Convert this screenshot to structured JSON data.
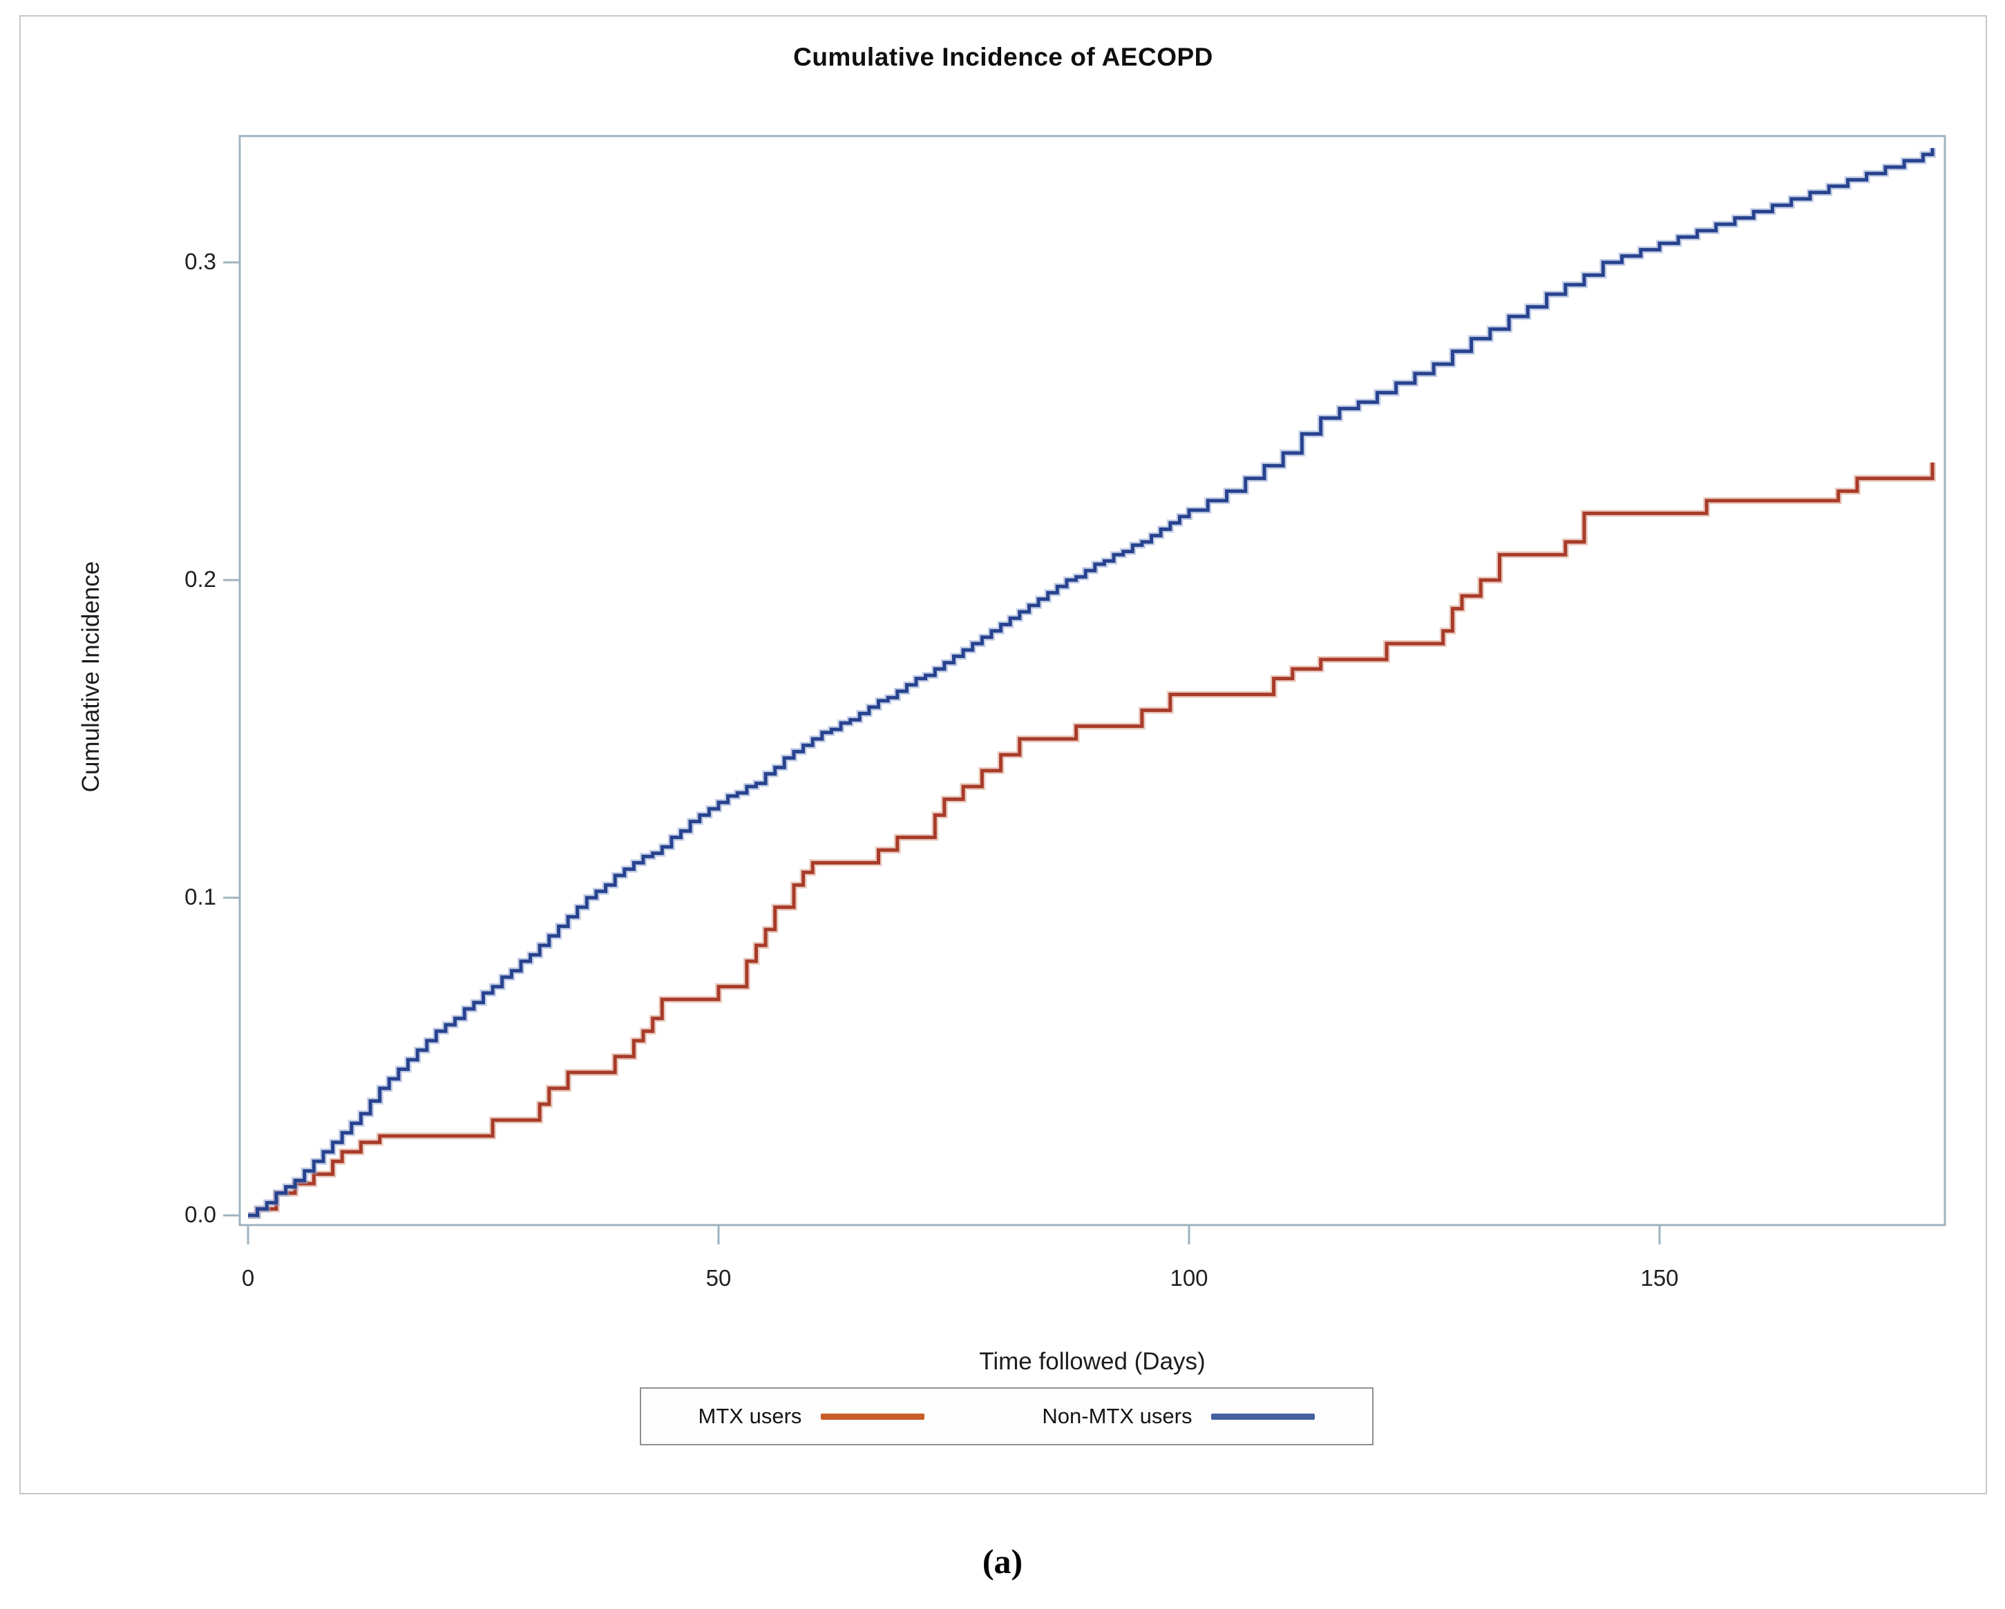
{
  "figure": {
    "title": "Cumulative Incidence of AECOPD",
    "caption": "(a)",
    "x_axis": {
      "label": "Time followed (Days)",
      "tick_labels": [
        "0",
        "50",
        "100",
        "150"
      ],
      "tick_values": [
        0,
        50,
        100,
        150
      ],
      "range": [
        0,
        180.3
      ]
    },
    "y_axis": {
      "label": "Cumulative Incidence",
      "tick_labels": [
        "0.0",
        "0.1",
        "0.2",
        "0.3"
      ],
      "tick_values": [
        0,
        0.1,
        0.2,
        0.3
      ],
      "range": [
        0,
        0.34
      ]
    },
    "legend": {
      "position": "bottom-center",
      "items": [
        {
          "label": "MTX users",
          "swatch_color": "#c75d26"
        },
        {
          "label": "Non-MTX users",
          "swatch_color": "#44619f"
        }
      ]
    },
    "frame_color": "#9fb3c0",
    "border_color": "#c7c7c7"
  },
  "chart_data": {
    "type": "line",
    "subtype": "step-cumulative-incidence",
    "title": "Cumulative Incidence of AECOPD",
    "xlabel": "Time followed (Days)",
    "ylabel": "Cumulative Incidence",
    "xlim": [
      0,
      180.3
    ],
    "ylim": [
      0,
      0.34
    ],
    "grid": false,
    "legend_position": "bottom",
    "series": [
      {
        "name": "MTX users",
        "color": "#a83b29",
        "halo_color": "#d8a08d",
        "points": [
          [
            0,
            0.0
          ],
          [
            1,
            0.002
          ],
          [
            3,
            0.007
          ],
          [
            5,
            0.01
          ],
          [
            7,
            0.013
          ],
          [
            9,
            0.017
          ],
          [
            10,
            0.02
          ],
          [
            12,
            0.023
          ],
          [
            14,
            0.025
          ],
          [
            26,
            0.03
          ],
          [
            31,
            0.035
          ],
          [
            32,
            0.04
          ],
          [
            34,
            0.045
          ],
          [
            39,
            0.05
          ],
          [
            41,
            0.055
          ],
          [
            42,
            0.058
          ],
          [
            43,
            0.062
          ],
          [
            44,
            0.068
          ],
          [
            50,
            0.072
          ],
          [
            53,
            0.08
          ],
          [
            54,
            0.085
          ],
          [
            55,
            0.09
          ],
          [
            56,
            0.097
          ],
          [
            58,
            0.104
          ],
          [
            59,
            0.108
          ],
          [
            60,
            0.111
          ],
          [
            67,
            0.115
          ],
          [
            69,
            0.119
          ],
          [
            73,
            0.126
          ],
          [
            74,
            0.131
          ],
          [
            76,
            0.135
          ],
          [
            78,
            0.14
          ],
          [
            80,
            0.145
          ],
          [
            82,
            0.15
          ],
          [
            88,
            0.154
          ],
          [
            95,
            0.159
          ],
          [
            98,
            0.164
          ],
          [
            109,
            0.169
          ],
          [
            111,
            0.172
          ],
          [
            114,
            0.175
          ],
          [
            121,
            0.18
          ],
          [
            127,
            0.184
          ],
          [
            128,
            0.191
          ],
          [
            129,
            0.195
          ],
          [
            131,
            0.2
          ],
          [
            133,
            0.208
          ],
          [
            140,
            0.212
          ],
          [
            142,
            0.221
          ],
          [
            155,
            0.225
          ],
          [
            169,
            0.228
          ],
          [
            171,
            0.232
          ],
          [
            179,
            0.237
          ]
        ]
      },
      {
        "name": "Non-MTX users",
        "color": "#27438f",
        "halo_color": "#93a6d4",
        "points": [
          [
            0,
            0.0
          ],
          [
            1,
            0.002
          ],
          [
            2,
            0.004
          ],
          [
            3,
            0.007
          ],
          [
            4,
            0.009
          ],
          [
            5,
            0.011
          ],
          [
            6,
            0.014
          ],
          [
            7,
            0.017
          ],
          [
            8,
            0.02
          ],
          [
            9,
            0.023
          ],
          [
            10,
            0.026
          ],
          [
            11,
            0.029
          ],
          [
            12,
            0.032
          ],
          [
            13,
            0.036
          ],
          [
            14,
            0.04
          ],
          [
            15,
            0.043
          ],
          [
            16,
            0.046
          ],
          [
            17,
            0.049
          ],
          [
            18,
            0.052
          ],
          [
            19,
            0.055
          ],
          [
            20,
            0.058
          ],
          [
            21,
            0.06
          ],
          [
            22,
            0.062
          ],
          [
            23,
            0.065
          ],
          [
            24,
            0.067
          ],
          [
            25,
            0.07
          ],
          [
            26,
            0.072
          ],
          [
            27,
            0.075
          ],
          [
            28,
            0.077
          ],
          [
            29,
            0.08
          ],
          [
            30,
            0.082
          ],
          [
            31,
            0.085
          ],
          [
            32,
            0.088
          ],
          [
            33,
            0.091
          ],
          [
            34,
            0.094
          ],
          [
            35,
            0.097
          ],
          [
            36,
            0.1
          ],
          [
            37,
            0.102
          ],
          [
            38,
            0.104
          ],
          [
            39,
            0.107
          ],
          [
            40,
            0.109
          ],
          [
            41,
            0.111
          ],
          [
            42,
            0.113
          ],
          [
            43,
            0.114
          ],
          [
            44,
            0.116
          ],
          [
            45,
            0.119
          ],
          [
            46,
            0.121
          ],
          [
            47,
            0.124
          ],
          [
            48,
            0.126
          ],
          [
            49,
            0.128
          ],
          [
            50,
            0.13
          ],
          [
            51,
            0.132
          ],
          [
            52,
            0.133
          ],
          [
            53,
            0.135
          ],
          [
            54,
            0.136
          ],
          [
            55,
            0.139
          ],
          [
            56,
            0.141
          ],
          [
            57,
            0.144
          ],
          [
            58,
            0.146
          ],
          [
            59,
            0.148
          ],
          [
            60,
            0.15
          ],
          [
            61,
            0.152
          ],
          [
            62,
            0.153
          ],
          [
            63,
            0.155
          ],
          [
            64,
            0.156
          ],
          [
            65,
            0.158
          ],
          [
            66,
            0.16
          ],
          [
            67,
            0.162
          ],
          [
            68,
            0.163
          ],
          [
            69,
            0.165
          ],
          [
            70,
            0.167
          ],
          [
            71,
            0.169
          ],
          [
            72,
            0.17
          ],
          [
            73,
            0.172
          ],
          [
            74,
            0.174
          ],
          [
            75,
            0.176
          ],
          [
            76,
            0.178
          ],
          [
            77,
            0.18
          ],
          [
            78,
            0.182
          ],
          [
            79,
            0.184
          ],
          [
            80,
            0.186
          ],
          [
            81,
            0.188
          ],
          [
            82,
            0.19
          ],
          [
            83,
            0.192
          ],
          [
            84,
            0.194
          ],
          [
            85,
            0.196
          ],
          [
            86,
            0.198
          ],
          [
            87,
            0.2
          ],
          [
            88,
            0.201
          ],
          [
            89,
            0.203
          ],
          [
            90,
            0.205
          ],
          [
            91,
            0.206
          ],
          [
            92,
            0.208
          ],
          [
            93,
            0.209
          ],
          [
            94,
            0.211
          ],
          [
            95,
            0.212
          ],
          [
            96,
            0.214
          ],
          [
            97,
            0.216
          ],
          [
            98,
            0.218
          ],
          [
            99,
            0.22
          ],
          [
            100,
            0.222
          ],
          [
            102,
            0.225
          ],
          [
            104,
            0.228
          ],
          [
            106,
            0.232
          ],
          [
            108,
            0.236
          ],
          [
            110,
            0.24
          ],
          [
            112,
            0.246
          ],
          [
            114,
            0.251
          ],
          [
            116,
            0.254
          ],
          [
            118,
            0.256
          ],
          [
            120,
            0.259
          ],
          [
            122,
            0.262
          ],
          [
            124,
            0.265
          ],
          [
            126,
            0.268
          ],
          [
            128,
            0.272
          ],
          [
            130,
            0.276
          ],
          [
            132,
            0.279
          ],
          [
            134,
            0.283
          ],
          [
            136,
            0.286
          ],
          [
            138,
            0.29
          ],
          [
            140,
            0.293
          ],
          [
            142,
            0.296
          ],
          [
            144,
            0.3
          ],
          [
            146,
            0.302
          ],
          [
            148,
            0.304
          ],
          [
            150,
            0.306
          ],
          [
            152,
            0.308
          ],
          [
            154,
            0.31
          ],
          [
            156,
            0.312
          ],
          [
            158,
            0.314
          ],
          [
            160,
            0.316
          ],
          [
            162,
            0.318
          ],
          [
            164,
            0.32
          ],
          [
            166,
            0.322
          ],
          [
            168,
            0.324
          ],
          [
            170,
            0.326
          ],
          [
            172,
            0.328
          ],
          [
            174,
            0.33
          ],
          [
            176,
            0.332
          ],
          [
            178,
            0.334
          ],
          [
            179,
            0.336
          ]
        ]
      }
    ]
  }
}
